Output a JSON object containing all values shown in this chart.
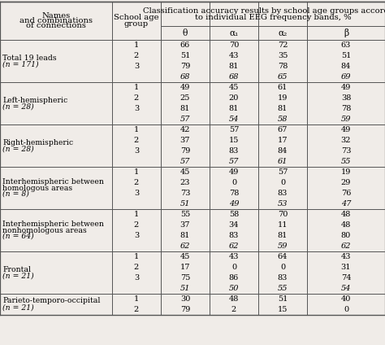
{
  "title_col1": "Names\nand combinations\nof connections",
  "title_col2": "School age\ngroup",
  "title_header_line1": "Classification accuracy results by school age groups according",
  "title_header_line2": "to individual EEG frequency bands, %",
  "col_headers": [
    "θ",
    "α₁",
    "α₂",
    "β"
  ],
  "rows": [
    {
      "name1": "Total 19 leads",
      "name2": "(n = 171)",
      "groups": [
        "1",
        "2",
        "3",
        ""
      ],
      "theta": [
        "66",
        "51",
        "79",
        "68"
      ],
      "alpha1": [
        "70",
        "43",
        "81",
        "68"
      ],
      "alpha2": [
        "72",
        "35",
        "78",
        "65"
      ],
      "beta": [
        "63",
        "51",
        "84",
        "69"
      ],
      "italic_row": 3
    },
    {
      "name1": "Left-hemispheric",
      "name2": "(n = 28)",
      "groups": [
        "1",
        "2",
        "3",
        ""
      ],
      "theta": [
        "49",
        "25",
        "81",
        "57"
      ],
      "alpha1": [
        "45",
        "20",
        "81",
        "54"
      ],
      "alpha2": [
        "61",
        "19",
        "81",
        "58"
      ],
      "beta": [
        "49",
        "38",
        "78",
        "59"
      ],
      "italic_row": 3
    },
    {
      "name1": "Right-hemispheric",
      "name2": "(n = 28)",
      "groups": [
        "1",
        "2",
        "3",
        ""
      ],
      "theta": [
        "42",
        "37",
        "79",
        "57"
      ],
      "alpha1": [
        "57",
        "15",
        "83",
        "57"
      ],
      "alpha2": [
        "67",
        "17",
        "84",
        "61"
      ],
      "beta": [
        "49",
        "32",
        "73",
        "55"
      ],
      "italic_row": 3
    },
    {
      "name1": "Interhemispheric between",
      "name1b": "homologous areas",
      "name2": "(n = 8)",
      "groups": [
        "1",
        "2",
        "3",
        ""
      ],
      "theta": [
        "45",
        "23",
        "73",
        "51"
      ],
      "alpha1": [
        "49",
        "0",
        "78",
        "49"
      ],
      "alpha2": [
        "57",
        "0",
        "83",
        "53"
      ],
      "beta": [
        "19",
        "29",
        "76",
        "47"
      ],
      "italic_row": 3
    },
    {
      "name1": "Interhemispheric between",
      "name1b": "nonhomologous areas",
      "name2": "(n = 64)",
      "groups": [
        "1",
        "2",
        "3",
        ""
      ],
      "theta": [
        "55",
        "37",
        "81",
        "62"
      ],
      "alpha1": [
        "58",
        "34",
        "83",
        "62"
      ],
      "alpha2": [
        "70",
        "11",
        "81",
        "59"
      ],
      "beta": [
        "48",
        "48",
        "80",
        "62"
      ],
      "italic_row": 3
    },
    {
      "name1": "Frontal",
      "name2": "(n = 21)",
      "groups": [
        "1",
        "2",
        "3",
        ""
      ],
      "theta": [
        "45",
        "17",
        "75",
        "51"
      ],
      "alpha1": [
        "43",
        "0",
        "86",
        "50"
      ],
      "alpha2": [
        "64",
        "0",
        "83",
        "55"
      ],
      "beta": [
        "43",
        "31",
        "74",
        "54"
      ],
      "italic_row": 3
    },
    {
      "name1": "Parieto-temporo-occipital",
      "name2": "(n = 21)",
      "groups": [
        "1",
        "2"
      ],
      "theta": [
        "30",
        "79"
      ],
      "alpha1": [
        "48",
        "2"
      ],
      "alpha2": [
        "51",
        "15"
      ],
      "beta": [
        "40",
        "0"
      ],
      "italic_row": -1
    }
  ],
  "bg_color": "#f0ece8",
  "line_color": "#555555",
  "font_size": 7.0,
  "header_font_size": 7.2
}
